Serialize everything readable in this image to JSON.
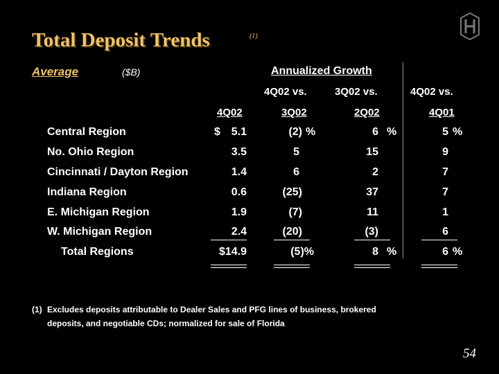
{
  "slide": {
    "title": "Total Deposit Trends",
    "title_note": "(1)",
    "subtitle": "Average",
    "unit": "($B)",
    "page_number": "54"
  },
  "table": {
    "group_header": "Annualized Growth",
    "col_headers": [
      {
        "line1": "",
        "line2": "4Q02"
      },
      {
        "line1": "4Q02 vs.",
        "line2": "3Q02"
      },
      {
        "line1": "3Q02 vs.",
        "line2": "2Q02"
      },
      {
        "line1": "4Q02 vs.",
        "line2": "4Q01"
      }
    ],
    "rows": [
      {
        "label": "Central Region",
        "dollar": "$",
        "amount": "5.1",
        "g1": "(2)",
        "g1_pct": "%",
        "g2": "6",
        "g2_pct": "%",
        "g3": "5",
        "g3_pct": "%"
      },
      {
        "label": "No. Ohio Region",
        "dollar": "",
        "amount": "3.5",
        "g1": "5",
        "g1_pct": "",
        "g2": "15",
        "g2_pct": "",
        "g3": "9",
        "g3_pct": ""
      },
      {
        "label": "Cincinnati / Dayton Region",
        "dollar": "",
        "amount": "1.4",
        "g1": "6",
        "g1_pct": "",
        "g2": "2",
        "g2_pct": "",
        "g3": "7",
        "g3_pct": ""
      },
      {
        "label": "Indiana Region",
        "dollar": "",
        "amount": "0.6",
        "g1": "(25)",
        "g1_pct": "",
        "g2": "37",
        "g2_pct": "",
        "g3": "7",
        "g3_pct": ""
      },
      {
        "label": "E. Michigan Region",
        "dollar": "",
        "amount": "1.9",
        "g1": "(7)",
        "g1_pct": "",
        "g2": "11",
        "g2_pct": "",
        "g3": "1",
        "g3_pct": ""
      },
      {
        "label": "W. Michigan Region",
        "dollar": "",
        "amount": "2.4",
        "g1": "(20)",
        "g1_pct": "",
        "g2": "(3)",
        "g2_pct": "",
        "g3": "6",
        "g3_pct": ""
      }
    ],
    "total": {
      "label": "Total Regions",
      "amount": "$14.9",
      "g1": "(5)%",
      "g2": "8",
      "g2_pct": "%",
      "g3": "6",
      "g3_pct": "%"
    }
  },
  "footnote": {
    "marker": "(1)",
    "line1": "Excludes deposits attributable to Dealer Sales and PFG lines of business, brokered",
    "line2": "deposits, and negotiable CDs; normalized for sale of Florida"
  },
  "colors": {
    "background": "#000000",
    "accent": "#f0c36a",
    "text": "#ffffff"
  },
  "icons": {
    "logo": "huntington-logo-icon"
  }
}
